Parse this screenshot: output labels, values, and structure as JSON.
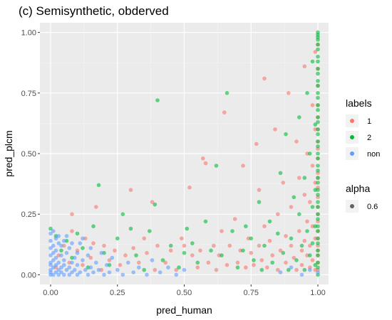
{
  "chart_data": {
    "type": "scatter",
    "title": "(c) Semisynthetic, obderved",
    "xlabel": "pred_human",
    "ylabel": "pred_plcm",
    "xlim": [
      -0.04,
      1.04
    ],
    "ylim": [
      -0.04,
      1.04
    ],
    "x_ticks": [
      0,
      0.25,
      0.5,
      0.75,
      1
    ],
    "x_tick_labels": [
      "0.00",
      "0.25",
      "0.50",
      "0.75",
      "1.00"
    ],
    "y_ticks": [
      0,
      0.25,
      0.5,
      0.75,
      1
    ],
    "y_tick_labels": [
      "0.00",
      "0.25",
      "0.50",
      "0.75",
      "1.00"
    ],
    "grid": true,
    "legend_position": "right",
    "legends": [
      {
        "title": "labels",
        "entries": [
          {
            "label": "1",
            "color": "#F8766D"
          },
          {
            "label": "2",
            "color": "#00BA38"
          },
          {
            "label": "non",
            "color": "#619CFF"
          }
        ]
      },
      {
        "title": "alpha",
        "entries": [
          {
            "label": "0.6",
            "color": "#333333"
          }
        ]
      }
    ],
    "series": [
      {
        "name": "1",
        "color": "#F8766D",
        "points": [
          [
            0.02,
            0.03
          ],
          [
            0.03,
            0.08
          ],
          [
            0.05,
            0.12
          ],
          [
            0.07,
            0.05
          ],
          [
            0.08,
            0.18
          ],
          [
            0.08,
            0.25
          ],
          [
            0.1,
            0.1
          ],
          [
            0.12,
            0.04
          ],
          [
            0.13,
            0.15
          ],
          [
            0.15,
            0.07
          ],
          [
            0.16,
            0.13
          ],
          [
            0.17,
            0.28
          ],
          [
            0.19,
            0.02
          ],
          [
            0.2,
            0.12
          ],
          [
            0.22,
            0.06
          ],
          [
            0.24,
            0.1
          ],
          [
            0.26,
            0.04
          ],
          [
            0.28,
            0.08
          ],
          [
            0.3,
            0.35
          ],
          [
            0.31,
            0.11
          ],
          [
            0.33,
            0.05
          ],
          [
            0.35,
            0.15
          ],
          [
            0.36,
            0.09
          ],
          [
            0.38,
            0.3
          ],
          [
            0.39,
            0.02
          ],
          [
            0.4,
            0.12
          ],
          [
            0.43,
            0.05
          ],
          [
            0.45,
            0.1
          ],
          [
            0.47,
            0.02
          ],
          [
            0.49,
            0.15
          ],
          [
            0.5,
            0.12
          ],
          [
            0.52,
            0.36
          ],
          [
            0.53,
            0.08
          ],
          [
            0.55,
            0.03
          ],
          [
            0.56,
            0.1
          ],
          [
            0.57,
            0.48
          ],
          [
            0.58,
            0.46
          ],
          [
            0.59,
            0.05
          ],
          [
            0.61,
            0.12
          ],
          [
            0.62,
            0.02
          ],
          [
            0.63,
            0.08
          ],
          [
            0.64,
            0.18
          ],
          [
            0.65,
            0.67
          ],
          [
            0.66,
            0.04
          ],
          [
            0.67,
            0.12
          ],
          [
            0.69,
            0.23
          ],
          [
            0.7,
            0.05
          ],
          [
            0.71,
            0.1
          ],
          [
            0.72,
            0.45
          ],
          [
            0.73,
            0.03
          ],
          [
            0.74,
            0.15
          ],
          [
            0.75,
            0.09
          ],
          [
            0.76,
            0.04
          ],
          [
            0.77,
            0.54
          ],
          [
            0.78,
            0.35
          ],
          [
            0.78,
            0.12
          ],
          [
            0.79,
            0.06
          ],
          [
            0.8,
            0.81
          ],
          [
            0.8,
            0.2
          ],
          [
            0.81,
            0.03
          ],
          [
            0.82,
            0.14
          ],
          [
            0.83,
            0.08
          ],
          [
            0.84,
            0.6
          ],
          [
            0.85,
            0.25
          ],
          [
            0.85,
            0.02
          ],
          [
            0.86,
            0.1
          ],
          [
            0.87,
            0.38
          ],
          [
            0.88,
            0.16
          ],
          [
            0.88,
            0.05
          ],
          [
            0.89,
            0.75
          ],
          [
            0.9,
            0.28
          ],
          [
            0.9,
            0.12
          ],
          [
            0.91,
            0.07
          ],
          [
            0.92,
            0.02
          ],
          [
            0.92,
            0.55
          ],
          [
            0.93,
            0.4
          ],
          [
            0.93,
            0.18
          ],
          [
            0.94,
            0.1
          ],
          [
            0.94,
            0.04
          ],
          [
            0.95,
            0.33
          ],
          [
            0.95,
            0.14
          ],
          [
            0.95,
            0.86
          ],
          [
            0.96,
            0.22
          ],
          [
            0.96,
            0.08
          ],
          [
            0.96,
            0.5
          ],
          [
            0.97,
            0.03
          ],
          [
            0.97,
            0.3
          ],
          [
            0.97,
            0.12
          ],
          [
            0.98,
            0.45
          ],
          [
            0.98,
            0.2
          ],
          [
            0.98,
            0.06
          ],
          [
            0.98,
            0.7
          ],
          [
            0.99,
            0.38
          ],
          [
            0.99,
            0.15
          ],
          [
            0.99,
            0.02
          ],
          [
            0.99,
            0.6
          ],
          [
            0.99,
            0.92
          ],
          [
            1,
            0.25
          ],
          [
            1,
            0.1
          ],
          [
            1,
            0.42
          ],
          [
            1,
            0.05
          ],
          [
            1,
            0.55
          ],
          [
            1,
            0.18
          ],
          [
            1,
            0.32
          ],
          [
            1,
            0.78
          ],
          [
            1,
            0.65
          ],
          [
            1,
            0.08
          ],
          [
            1,
            0.48
          ],
          [
            1,
            0.22
          ],
          [
            1,
            0.12
          ],
          [
            1,
            0.28
          ],
          [
            1,
            0.36
          ],
          [
            1,
            0.02
          ],
          [
            1,
            0.15
          ],
          [
            1,
            0.4
          ],
          [
            1,
            0.6
          ],
          [
            1,
            0.7
          ],
          [
            1,
            0.85
          ],
          [
            1,
            0.95
          ],
          [
            1,
            0.52
          ]
        ]
      },
      {
        "name": "2",
        "color": "#00BA38",
        "points": [
          [
            0.0,
            0.19
          ],
          [
            0.02,
            0.16
          ],
          [
            0.04,
            0.1
          ],
          [
            0.06,
            0.14
          ],
          [
            0.08,
            0.07
          ],
          [
            0.1,
            0.17
          ],
          [
            0.12,
            0.11
          ],
          [
            0.14,
            0.03
          ],
          [
            0.16,
            0.2
          ],
          [
            0.18,
            0.37
          ],
          [
            0.2,
            0.09
          ],
          [
            0.22,
            0.04
          ],
          [
            0.25,
            0.15
          ],
          [
            0.27,
            0.25
          ],
          [
            0.3,
            0.19
          ],
          [
            0.32,
            0.08
          ],
          [
            0.35,
            0.02
          ],
          [
            0.37,
            0.18
          ],
          [
            0.39,
            0.29
          ],
          [
            0.4,
            0.72
          ],
          [
            0.42,
            0.06
          ],
          [
            0.45,
            0.12
          ],
          [
            0.48,
            0.03
          ],
          [
            0.5,
            0.09
          ],
          [
            0.51,
            0.19
          ],
          [
            0.53,
            0.13
          ],
          [
            0.55,
            0.05
          ],
          [
            0.58,
            0.22
          ],
          [
            0.6,
            0.1
          ],
          [
            0.62,
            0.45
          ],
          [
            0.64,
            0.08
          ],
          [
            0.66,
            0.75
          ],
          [
            0.68,
            0.18
          ],
          [
            0.7,
            0.03
          ],
          [
            0.72,
            0.1
          ],
          [
            0.73,
            0.2
          ],
          [
            0.75,
            0.15
          ],
          [
            0.76,
            0.06
          ],
          [
            0.78,
            0.3
          ],
          [
            0.79,
            0.02
          ],
          [
            0.8,
            0.12
          ],
          [
            0.82,
            0.22
          ],
          [
            0.83,
            0.05
          ],
          [
            0.85,
            0.17
          ],
          [
            0.86,
            0.42
          ],
          [
            0.87,
            0.09
          ],
          [
            0.88,
            0.58
          ],
          [
            0.89,
            0.02
          ],
          [
            0.9,
            0.15
          ],
          [
            0.91,
            0.32
          ],
          [
            0.92,
            0.06
          ],
          [
            0.93,
            0.25
          ],
          [
            0.93,
            0.65
          ],
          [
            0.94,
            0.12
          ],
          [
            0.95,
            0.02
          ],
          [
            0.95,
            0.4
          ],
          [
            0.96,
            0.18
          ],
          [
            0.96,
            0.75
          ],
          [
            0.97,
            0.08
          ],
          [
            0.97,
            0.5
          ],
          [
            0.98,
            0.28
          ],
          [
            0.98,
            0.13
          ],
          [
            0.98,
            0.88
          ],
          [
            0.99,
            0.04
          ],
          [
            0.99,
            0.35
          ],
          [
            0.99,
            0.2
          ],
          [
            0.99,
            0.62
          ],
          [
            1,
            0.0
          ],
          [
            1,
            0.05
          ],
          [
            1,
            0.1
          ],
          [
            1,
            0.15
          ],
          [
            1,
            0.2
          ],
          [
            1,
            0.25
          ],
          [
            1,
            0.3
          ],
          [
            1,
            0.35
          ],
          [
            1,
            0.4
          ],
          [
            1,
            0.45
          ],
          [
            1,
            0.5
          ],
          [
            1,
            0.55
          ],
          [
            1,
            0.6
          ],
          [
            1,
            0.65
          ],
          [
            1,
            0.7
          ],
          [
            1,
            0.75
          ],
          [
            1,
            0.8
          ],
          [
            1,
            0.85
          ],
          [
            1,
            0.9
          ],
          [
            1,
            0.95
          ],
          [
            1,
            0.98
          ],
          [
            1,
            1.0
          ],
          [
            1,
            0.03
          ],
          [
            1,
            0.08
          ],
          [
            1,
            0.13
          ],
          [
            1,
            0.18
          ],
          [
            1,
            0.23
          ],
          [
            1,
            0.28
          ],
          [
            1,
            0.33
          ],
          [
            1,
            0.38
          ],
          [
            1,
            0.43
          ],
          [
            1,
            0.48
          ],
          [
            1,
            0.53
          ],
          [
            1,
            0.58
          ],
          [
            1,
            0.63
          ],
          [
            1,
            0.68
          ],
          [
            1,
            0.73
          ],
          [
            1,
            0.78
          ],
          [
            1,
            0.83
          ],
          [
            1,
            0.88
          ],
          [
            1,
            0.93
          ],
          [
            1,
            0.97
          ],
          [
            1,
            0.99
          ]
        ]
      },
      {
        "name": "non",
        "color": "#619CFF",
        "points": [
          [
            0.0,
            0.0
          ],
          [
            0.0,
            0.02
          ],
          [
            0.0,
            0.05
          ],
          [
            0.0,
            0.08
          ],
          [
            0.0,
            0.11
          ],
          [
            0.0,
            0.14
          ],
          [
            0.0,
            0.01
          ],
          [
            0.0,
            0.04
          ],
          [
            0.01,
            0.0
          ],
          [
            0.01,
            0.03
          ],
          [
            0.01,
            0.06
          ],
          [
            0.01,
            0.09
          ],
          [
            0.01,
            0.12
          ],
          [
            0.02,
            0.01
          ],
          [
            0.02,
            0.04
          ],
          [
            0.02,
            0.07
          ],
          [
            0.02,
            0.1
          ],
          [
            0.03,
            0.0
          ],
          [
            0.03,
            0.02
          ],
          [
            0.03,
            0.05
          ],
          [
            0.03,
            0.13
          ],
          [
            0.04,
            0.01
          ],
          [
            0.04,
            0.03
          ],
          [
            0.04,
            0.08
          ],
          [
            0.05,
            0.0
          ],
          [
            0.05,
            0.04
          ],
          [
            0.05,
            0.06
          ],
          [
            0.06,
            0.02
          ],
          [
            0.06,
            0.09
          ],
          [
            0.07,
            0.0
          ],
          [
            0.07,
            0.03
          ],
          [
            0.07,
            0.11
          ],
          [
            0.08,
            0.01
          ],
          [
            0.08,
            0.05
          ],
          [
            0.09,
            0.02
          ],
          [
            0.09,
            0.07
          ],
          [
            0.1,
            0.0
          ],
          [
            0.1,
            0.04
          ],
          [
            0.11,
            0.13
          ],
          [
            0.11,
            0.01
          ],
          [
            0.12,
            0.06
          ],
          [
            0.13,
            0.02
          ],
          [
            0.14,
            0.0
          ],
          [
            0.14,
            0.08
          ],
          [
            0.15,
            0.03
          ],
          [
            0.16,
            0.01
          ],
          [
            0.17,
            0.05
          ],
          [
            0.18,
            0.02
          ],
          [
            0.19,
            0.09
          ],
          [
            0.2,
            0.0
          ],
          [
            0.21,
            0.04
          ],
          [
            0.22,
            0.01
          ],
          [
            0.23,
            0.07
          ],
          [
            0.25,
            0.02
          ],
          [
            0.27,
            0.0
          ],
          [
            0.29,
            0.05
          ],
          [
            0.31,
            0.01
          ],
          [
            0.33,
            0.03
          ],
          [
            0.36,
            0.0
          ],
          [
            0.38,
            0.06
          ],
          [
            0.41,
            0.01
          ],
          [
            0.44,
            0.03
          ],
          [
            0.47,
            0.0
          ],
          [
            0.5,
            0.02
          ],
          [
            0.86,
            0.01
          ],
          [
            0.9,
            0.03
          ],
          [
            0.94,
            0.0
          ],
          [
            0.97,
            0.02
          ],
          [
            1,
            0.01
          ],
          [
            0.02,
            0.15
          ],
          [
            0.04,
            0.12
          ],
          [
            0.06,
            0.16
          ],
          [
            0.08,
            0.13
          ],
          [
            0.1,
            0.09
          ],
          [
            0.12,
            0.15
          ],
          [
            0.15,
            0.11
          ],
          [
            0.0,
            0.17
          ],
          [
            0.01,
            0.18
          ],
          [
            0.03,
            0.16
          ],
          [
            0.05,
            0.14
          ]
        ]
      }
    ]
  }
}
